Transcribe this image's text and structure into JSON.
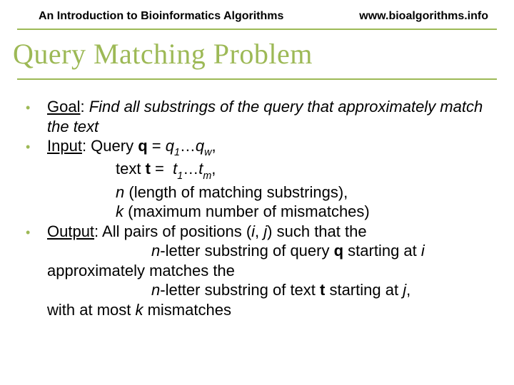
{
  "header": {
    "left": "An Introduction to Bioinformatics Algorithms",
    "right": "www.bioalgorithms.info"
  },
  "title": "Query Matching Problem",
  "colors": {
    "accent": "#9db956",
    "text": "#000000",
    "background": "#ffffff"
  },
  "typography": {
    "header_fontsize": 16,
    "title_fontsize": 40,
    "body_fontsize": 22,
    "title_font": "serif",
    "body_font": "Arial"
  },
  "bullets": [
    {
      "label": "Goal",
      "goal_rest": ": ",
      "goal_desc": "Find all substrings of the query that approximately match the text"
    },
    {
      "label": "Input",
      "input_q_pre": ": Query ",
      "q": "q",
      "eq": " = ",
      "q1": "q",
      "s1": "1",
      "dots": "…",
      "qw": "q",
      "sw": "w",
      "comma": ",",
      "text_pre": "text ",
      "t": "t",
      "eq2": " = ",
      "t1": "t",
      "st1": "1",
      "dots2": "…",
      "tm": "t",
      "stm": "m",
      "comma2": ",",
      "n": "n",
      "n_desc": " (length of matching substrings),",
      "k": "k",
      "k_desc": " (maximum number of mismatches)"
    },
    {
      "label": "Output",
      "out_pre": ": All pairs of positions (",
      "i": "i",
      "sep": ", ",
      "j": "j",
      "out_post": ") such that the",
      "l2a": "n",
      "l2b": "-letter substring of query ",
      "l2q": "q",
      "l2c": " starting at ",
      "l2i": "i",
      "l3": "approximately matches the",
      "l4a": "n",
      "l4b": "-letter substring of text  ",
      "l4t": "t",
      "l4c": " starting at ",
      "l4j": "j",
      "l4d": ",",
      "l5a": "with at most ",
      "l5k": "k",
      "l5b": " mismatches"
    }
  ]
}
